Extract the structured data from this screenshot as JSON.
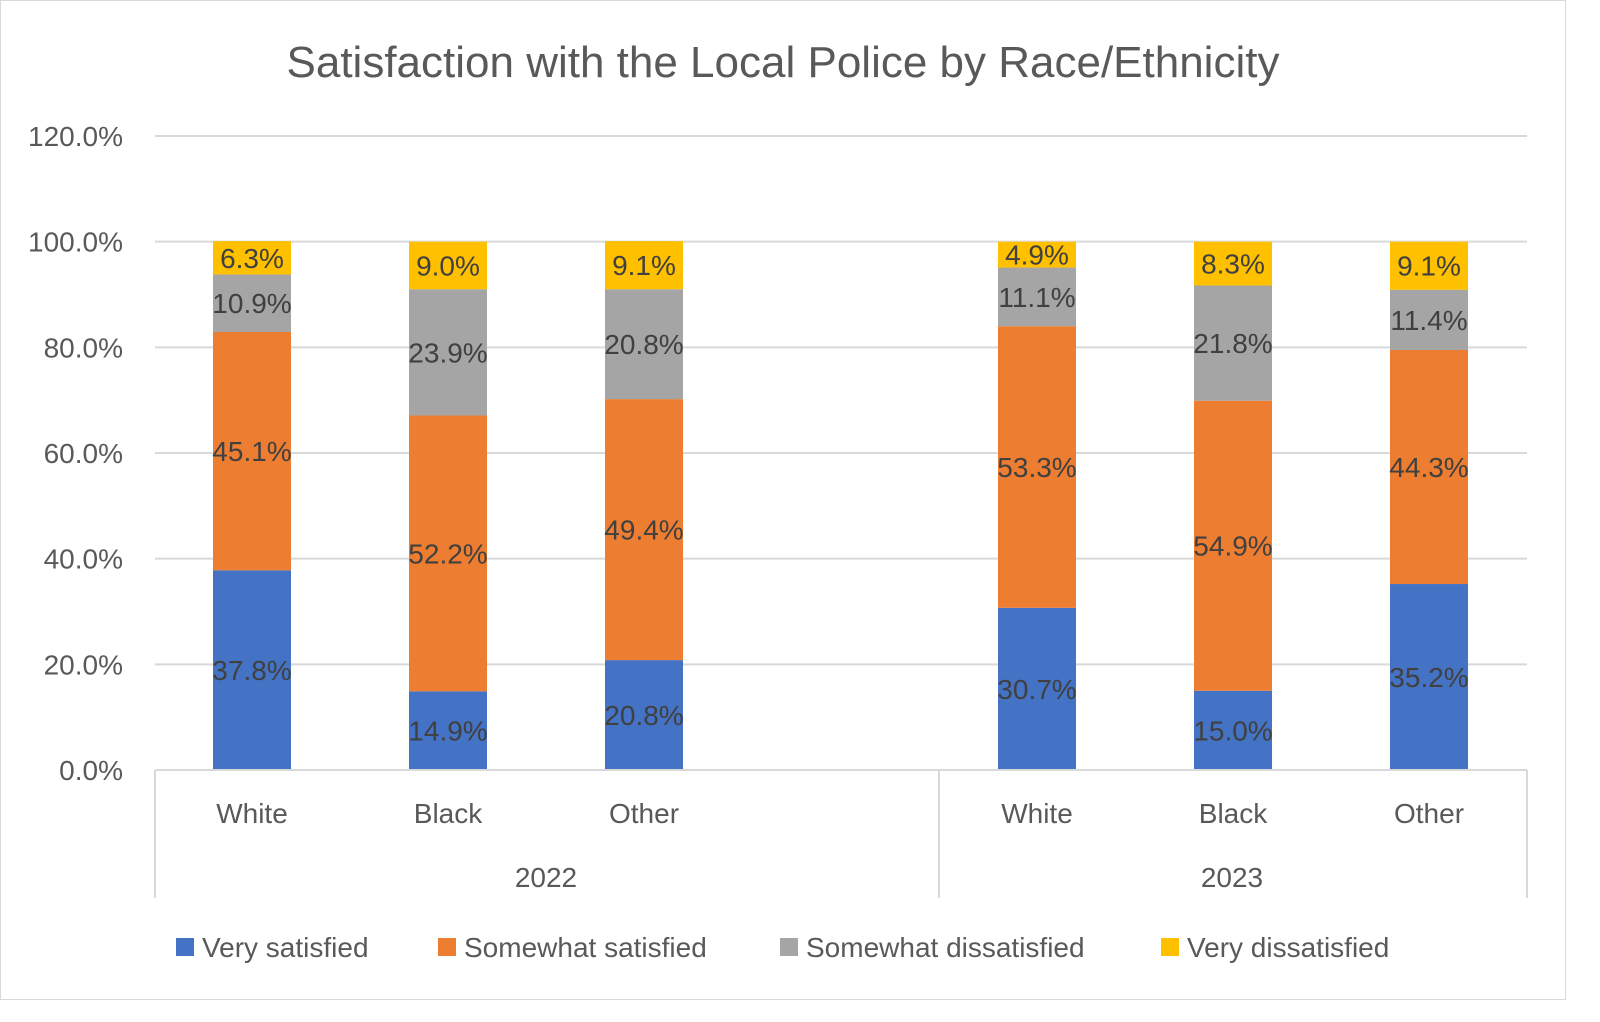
{
  "chart_data": {
    "type": "bar",
    "stacked": true,
    "title": "Satisfaction with the Local Police by Race/Ethnicity",
    "xlabel": "",
    "ylabel": "",
    "ylim": [
      0,
      120
    ],
    "yticks": [
      "0.0%",
      "20.0%",
      "40.0%",
      "60.0%",
      "80.0%",
      "100.0%",
      "120.0%"
    ],
    "grid": true,
    "legend_position": "bottom",
    "groups": [
      {
        "label": "2022",
        "categories": [
          "White",
          "Black",
          "Other"
        ]
      },
      {
        "label": "2023",
        "categories": [
          "White",
          "Black",
          "Other"
        ]
      }
    ],
    "series": [
      {
        "name": "Very satisfied",
        "color": "#4472C4",
        "values": [
          37.8,
          14.9,
          20.8,
          30.7,
          15.0,
          35.2
        ],
        "labels": [
          "37.8%",
          "14.9%",
          "20.8%",
          "30.7%",
          "15.0%",
          "35.2%"
        ]
      },
      {
        "name": "Somewhat satisfied",
        "color": "#ED7D31",
        "values": [
          45.1,
          52.2,
          49.4,
          53.3,
          54.9,
          44.3
        ],
        "labels": [
          "45.1%",
          "52.2%",
          "49.4%",
          "53.3%",
          "54.9%",
          "44.3%"
        ]
      },
      {
        "name": "Somewhat dissatisfied",
        "color": "#A5A5A5",
        "values": [
          10.9,
          23.9,
          20.8,
          11.1,
          21.8,
          11.4
        ],
        "labels": [
          "10.9%",
          "23.9%",
          "20.8%",
          "11.1%",
          "21.8%",
          "11.4%"
        ]
      },
      {
        "name": "Very dissatisfied",
        "color": "#FFC000",
        "values": [
          6.3,
          9.0,
          9.1,
          4.9,
          8.3,
          9.1
        ],
        "labels": [
          "6.3%",
          "9.0%",
          "9.1%",
          "4.9%",
          "8.3%",
          "9.1%"
        ]
      }
    ]
  }
}
